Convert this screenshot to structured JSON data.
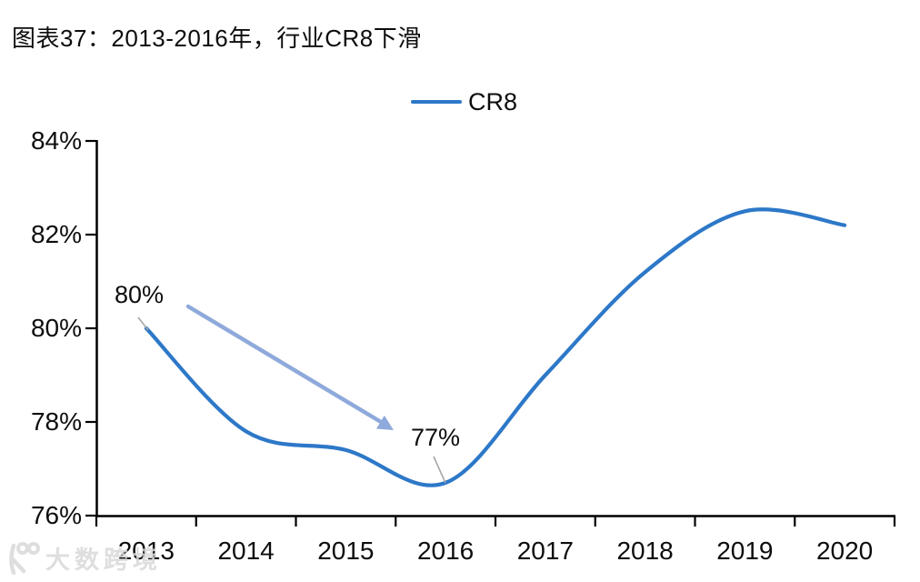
{
  "title": "图表37：2013-2016年，行业CR8下滑",
  "legend": {
    "label": "CR8"
  },
  "watermark": "大数跨境",
  "colors": {
    "line": "#2d78c8",
    "arrow": "#8ea9db",
    "leader": "#a6a6a6",
    "axis": "#000000",
    "text": "#0d0d0d",
    "watermark": "#d9d9d9"
  },
  "chart_data": {
    "type": "line",
    "title": "图表37：2013-2016年，行业CR8下滑",
    "categories": [
      "2013",
      "2014",
      "2015",
      "2016",
      "2017",
      "2018",
      "2019",
      "2020"
    ],
    "series": [
      {
        "name": "CR8",
        "values": [
          80.0,
          77.8,
          77.4,
          76.7,
          79.0,
          81.2,
          82.5,
          82.2
        ]
      }
    ],
    "xlabel": "",
    "ylabel": "",
    "ylim": [
      76,
      84
    ],
    "y_tick_values": [
      84,
      82,
      80,
      78,
      76
    ],
    "y_tick_labels": [
      "84%",
      "82%",
      "80%",
      "78%",
      "76%"
    ],
    "grid": false,
    "legend_position": "top-center",
    "annotations": [
      {
        "text": "80%",
        "target_category": "2013"
      },
      {
        "text": "77%",
        "target_category": "2016"
      }
    ]
  }
}
